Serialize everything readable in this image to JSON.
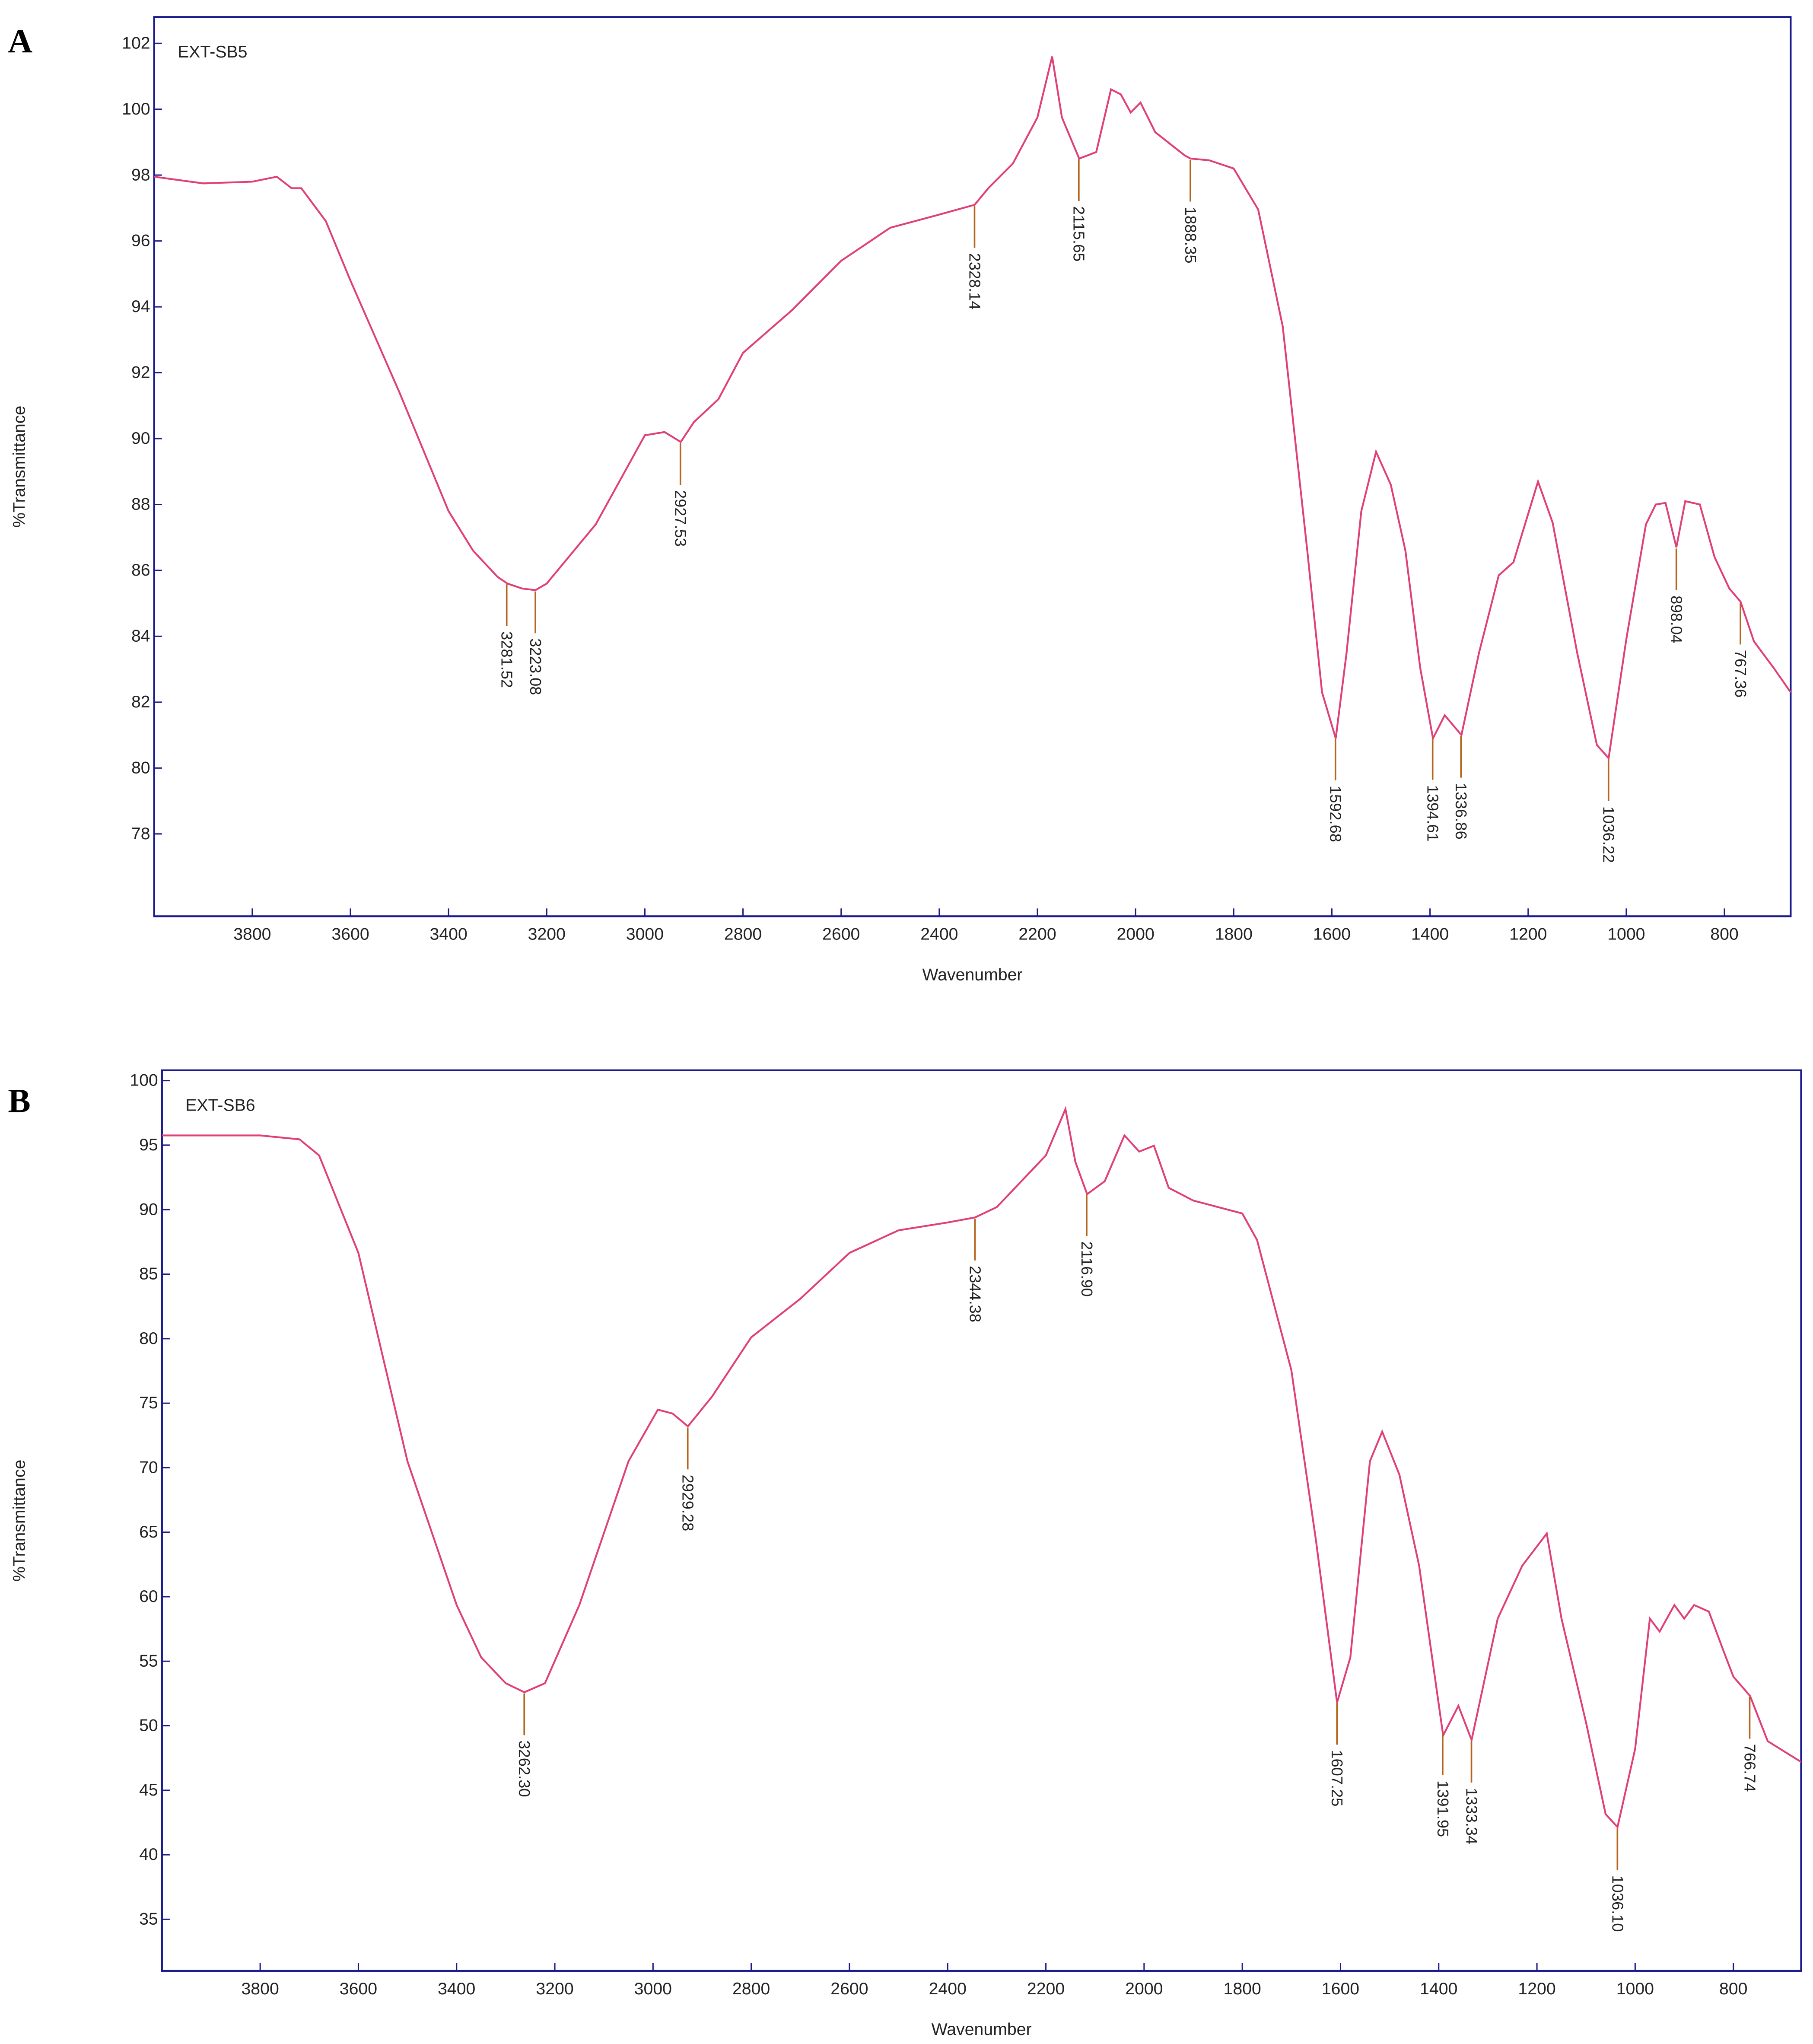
{
  "chart_data": [
    {
      "type": "line",
      "panel": "A",
      "title": "EXT-SB5",
      "xlabel": "Wavenumber",
      "ylabel": "%Transmittance",
      "color": "#e0407a",
      "xlim": [
        4000,
        665
      ],
      "ylim": [
        75.5,
        102.8
      ],
      "xticks": [
        3800,
        3600,
        3400,
        3200,
        3000,
        2800,
        2600,
        2400,
        2200,
        2000,
        1800,
        1600,
        1400,
        1200,
        1000,
        800
      ],
      "yticks": [
        78,
        80,
        82,
        84,
        86,
        88,
        90,
        92,
        94,
        96,
        98,
        100,
        102
      ],
      "x": [
        4000,
        3900,
        3800,
        3750,
        3720,
        3700,
        3650,
        3600,
        3500,
        3400,
        3350,
        3300,
        3280,
        3250,
        3223,
        3200,
        3100,
        3000,
        2960,
        2927,
        2900,
        2850,
        2800,
        2700,
        2600,
        2500,
        2400,
        2328,
        2300,
        2250,
        2200,
        2170,
        2150,
        2115,
        2080,
        2050,
        2030,
        2010,
        1990,
        1960,
        1900,
        1888,
        1850,
        1800,
        1750,
        1700,
        1650,
        1620,
        1592,
        1570,
        1540,
        1510,
        1480,
        1450,
        1420,
        1394,
        1370,
        1336,
        1300,
        1260,
        1230,
        1180,
        1150,
        1100,
        1060,
        1036,
        1000,
        960,
        940,
        920,
        898,
        880,
        850,
        820,
        790,
        767,
        740,
        700,
        665
      ],
      "values": [
        97.95,
        97.75,
        97.8,
        97.95,
        97.6,
        97.6,
        96.6,
        94.8,
        91.4,
        87.8,
        86.6,
        85.8,
        85.6,
        85.45,
        85.4,
        85.6,
        87.4,
        90.1,
        90.2,
        89.9,
        90.5,
        91.2,
        92.6,
        93.9,
        95.4,
        96.4,
        96.8,
        97.1,
        97.6,
        98.35,
        99.75,
        101.6,
        99.75,
        98.5,
        98.7,
        100.6,
        100.45,
        99.9,
        100.2,
        99.3,
        98.6,
        98.5,
        98.45,
        98.2,
        96.95,
        93.4,
        86.6,
        82.3,
        80.9,
        83.5,
        87.8,
        89.6,
        88.6,
        86.6,
        83.05,
        80.9,
        81.6,
        81.0,
        83.5,
        85.85,
        86.25,
        88.7,
        87.45,
        83.5,
        80.7,
        80.3,
        83.9,
        87.4,
        88.0,
        88.05,
        86.7,
        88.1,
        88.0,
        86.4,
        85.45,
        85.05,
        83.85,
        83.05,
        82.3
      ],
      "peaks": [
        {
          "x": 3281.52,
          "label": "3281.52"
        },
        {
          "x": 3223.08,
          "label": "3223.08"
        },
        {
          "x": 2927.53,
          "label": "2927.53"
        },
        {
          "x": 2328.14,
          "label": "2328.14"
        },
        {
          "x": 2115.65,
          "label": "2115.65"
        },
        {
          "x": 1888.35,
          "label": "1888.35"
        },
        {
          "x": 1592.68,
          "label": "1592.68"
        },
        {
          "x": 1394.61,
          "label": "1394.61"
        },
        {
          "x": 1336.86,
          "label": "1336.86"
        },
        {
          "x": 1036.22,
          "label": "1036.22"
        },
        {
          "x": 898.04,
          "label": "898.04"
        },
        {
          "x": 767.36,
          "label": "767.36"
        }
      ]
    },
    {
      "type": "line",
      "panel": "B",
      "title": "EXT-SB6",
      "xlabel": "Wavenumber",
      "ylabel": "%Transmittance",
      "color": "#e0407a",
      "xlim": [
        4000,
        662
      ],
      "ylim": [
        31,
        100.8
      ],
      "xticks": [
        3800,
        3600,
        3400,
        3200,
        3000,
        2800,
        2600,
        2400,
        2200,
        2000,
        1800,
        1600,
        1400,
        1200,
        1000,
        800
      ],
      "yticks": [
        35,
        40,
        45,
        50,
        55,
        60,
        65,
        70,
        75,
        80,
        85,
        90,
        95,
        100
      ],
      "x": [
        4000,
        3800,
        3720,
        3680,
        3600,
        3500,
        3400,
        3350,
        3300,
        3262,
        3220,
        3150,
        3050,
        2990,
        2960,
        2929,
        2880,
        2800,
        2700,
        2600,
        2500,
        2400,
        2344,
        2300,
        2200,
        2160,
        2140,
        2116,
        2080,
        2040,
        2010,
        1980,
        1950,
        1900,
        1800,
        1770,
        1700,
        1650,
        1607,
        1580,
        1540,
        1515,
        1480,
        1440,
        1391,
        1360,
        1333,
        1280,
        1230,
        1180,
        1150,
        1100,
        1060,
        1036,
        1000,
        970,
        950,
        920,
        900,
        880,
        850,
        820,
        800,
        766,
        730,
        662
      ],
      "values": [
        95.75,
        95.75,
        95.45,
        94.2,
        86.65,
        70.5,
        59.35,
        55.3,
        53.3,
        52.6,
        53.3,
        59.35,
        70.5,
        74.5,
        74.2,
        73.2,
        75.5,
        80.1,
        83.1,
        86.65,
        88.4,
        89.0,
        89.4,
        90.2,
        94.2,
        97.8,
        93.7,
        91.2,
        92.2,
        95.75,
        94.5,
        94.95,
        91.7,
        90.7,
        89.7,
        87.65,
        77.55,
        64.4,
        51.8,
        55.3,
        70.5,
        72.8,
        69.45,
        62.4,
        49.25,
        51.55,
        48.9,
        58.3,
        62.4,
        64.9,
        58.3,
        50.25,
        43.15,
        42.15,
        48.2,
        58.3,
        57.3,
        59.35,
        58.3,
        59.35,
        58.85,
        55.8,
        53.8,
        52.3,
        48.8,
        47.2
      ],
      "peaks": [
        {
          "x": 3262.3,
          "label": "3262.30"
        },
        {
          "x": 2929.28,
          "label": "2929.28"
        },
        {
          "x": 2344.38,
          "label": "2344.38"
        },
        {
          "x": 2116.9,
          "label": "2116.90"
        },
        {
          "x": 1607.25,
          "label": "1607.25"
        },
        {
          "x": 1391.95,
          "label": "1391.95"
        },
        {
          "x": 1333.34,
          "label": "1333.34"
        },
        {
          "x": 1036.1,
          "label": "1036.10"
        },
        {
          "x": 766.74,
          "label": "766.74"
        }
      ]
    }
  ]
}
